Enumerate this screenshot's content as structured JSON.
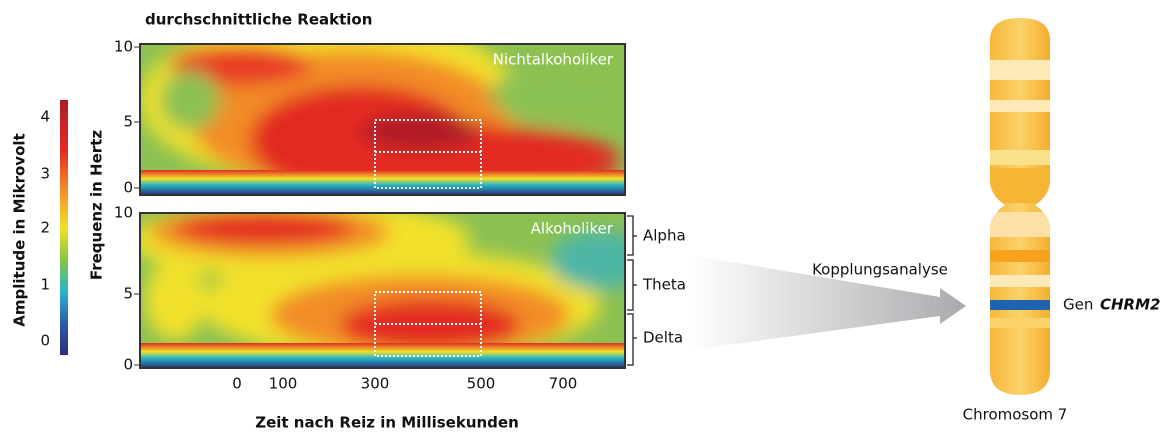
{
  "title": "durchschnittliche Reaktion",
  "colorbar": {
    "label": "Amplitude in Mikrovolt",
    "ticks": [
      "4",
      "3",
      "2",
      "1",
      "0"
    ]
  },
  "y_axis_label": "Frequenz in Hertz",
  "panels": [
    {
      "label": "Nichtalkoholiker",
      "yticks": [
        "10",
        "5",
        "0"
      ]
    },
    {
      "label": "Alkoholiker",
      "yticks": [
        "10",
        "5",
        "0"
      ]
    }
  ],
  "x_axis": {
    "label": "Zeit nach Reiz in Millisekunden",
    "ticks": [
      "0",
      "100",
      "300",
      "500",
      "700"
    ]
  },
  "bands": [
    "Alpha",
    "Theta",
    "Delta"
  ],
  "arrow_label": "Kopplungsanalyse",
  "gene": {
    "prefix": "Gen",
    "name": "CHRM2"
  },
  "chromosome_label": "Chromosom 7"
}
